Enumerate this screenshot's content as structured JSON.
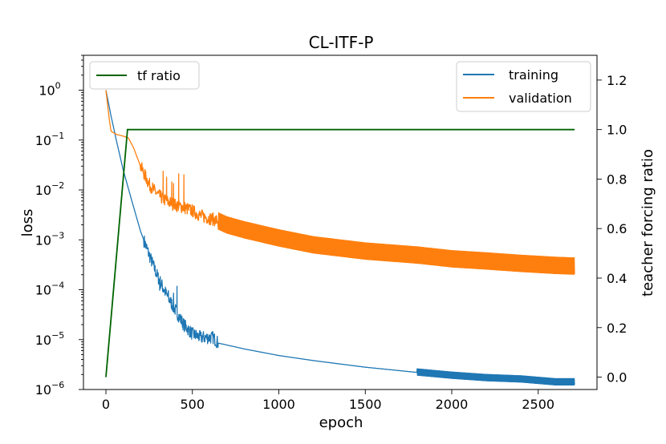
{
  "chart_data": {
    "type": "line",
    "title": "CL-ITF-P",
    "xlabel": "epoch",
    "ylabel": "loss",
    "ylabel_right": "teacher forcing ratio",
    "xlim": [
      -130,
      2840
    ],
    "ylim_left": [
      1e-06,
      5
    ],
    "yscale_left": "log",
    "ylim_right": [
      -0.05,
      1.3
    ],
    "grid": false,
    "x_ticks": [
      0,
      500,
      1000,
      1500,
      2000,
      2500
    ],
    "x_tick_labels": [
      "0",
      "500",
      "1000",
      "1500",
      "2000",
      "2500"
    ],
    "y_left_ticks": [
      {
        "value": 1,
        "base": "10",
        "exp": "0"
      },
      {
        "value": 0.1,
        "base": "10",
        "exp": "−1"
      },
      {
        "value": 0.01,
        "base": "10",
        "exp": "−2"
      },
      {
        "value": 0.001,
        "base": "10",
        "exp": "−3"
      },
      {
        "value": 0.0001,
        "base": "10",
        "exp": "−4"
      },
      {
        "value": 1e-05,
        "base": "10",
        "exp": "−5"
      },
      {
        "value": 1e-06,
        "base": "10",
        "exp": "−6"
      }
    ],
    "y_right_ticks": [
      0.0,
      0.2,
      0.4,
      0.6,
      0.8,
      1.0,
      1.2
    ],
    "y_right_tick_labels": [
      "0.0",
      "0.2",
      "0.4",
      "0.6",
      "0.8",
      "1.0",
      "1.2"
    ],
    "legend_left": {
      "placement": "upper left",
      "entries": [
        "tf ratio"
      ]
    },
    "legend_right": {
      "placement": "upper right",
      "entries": [
        "training",
        "validation"
      ]
    },
    "series": [
      {
        "name": "training",
        "axis": "left",
        "color": "#1f77b4",
        "x": [
          0,
          30,
          60,
          100,
          150,
          200,
          250,
          300,
          350,
          400,
          450,
          500,
          550,
          600,
          620,
          650,
          700,
          800,
          1000,
          1200,
          1500,
          1800,
          2000,
          2200,
          2400,
          2600,
          2710
        ],
        "y": [
          1.0,
          0.3,
          0.1,
          0.025,
          0.006,
          0.0015,
          0.0005,
          0.00018,
          8e-05,
          4e-05,
          2e-05,
          1.3e-05,
          1.1e-05,
          1.1e-05,
          1.1e-05,
          8.5e-06,
          7.8e-06,
          6.5e-06,
          4.8e-06,
          3.8e-06,
          2.8e-06,
          2.2e-06,
          1.9e-06,
          1.7e-06,
          1.6e-06,
          1.4e-06,
          1.4e-06
        ],
        "noise": {
          "from_x": 220,
          "to_x": 650,
          "note_spikes_x": [
            310,
            330,
            360,
            390,
            410
          ],
          "spike_level": 0.00012,
          "osc_from_x": 1800,
          "osc_band": [
            1.2e-06,
            1.7e-06
          ]
        }
      },
      {
        "name": "validation",
        "axis": "left",
        "color": "#ff7f0e",
        "x": [
          0,
          10,
          20,
          30,
          60,
          100,
          130,
          160,
          200,
          250,
          300,
          350,
          400,
          450,
          500,
          550,
          600,
          650,
          700,
          800,
          1000,
          1200,
          1500,
          1800,
          2000,
          2200,
          2400,
          2600,
          2710
        ],
        "y": [
          1.0,
          0.5,
          0.25,
          0.15,
          0.13,
          0.12,
          0.11,
          0.07,
          0.03,
          0.013,
          0.008,
          0.006,
          0.005,
          0.0045,
          0.0038,
          0.003,
          0.0027,
          0.0024,
          0.002,
          0.0016,
          0.0011,
          0.0008,
          0.0006,
          0.0005,
          0.00042,
          0.00038,
          0.00034,
          0.00031,
          0.0003
        ],
        "noise": {
          "from_x": 200,
          "to_x": 2710,
          "note_spikes_x": [
            330,
            350,
            380,
            390,
            420,
            450
          ],
          "spike_level": 0.022,
          "osc_from_x": 650,
          "osc_band": [
            0.0002,
            0.00045
          ]
        }
      },
      {
        "name": "tf ratio",
        "axis": "right",
        "color": "#006400",
        "x": [
          0,
          125,
          2710
        ],
        "y": [
          0.0,
          1.0,
          1.0
        ]
      }
    ]
  }
}
